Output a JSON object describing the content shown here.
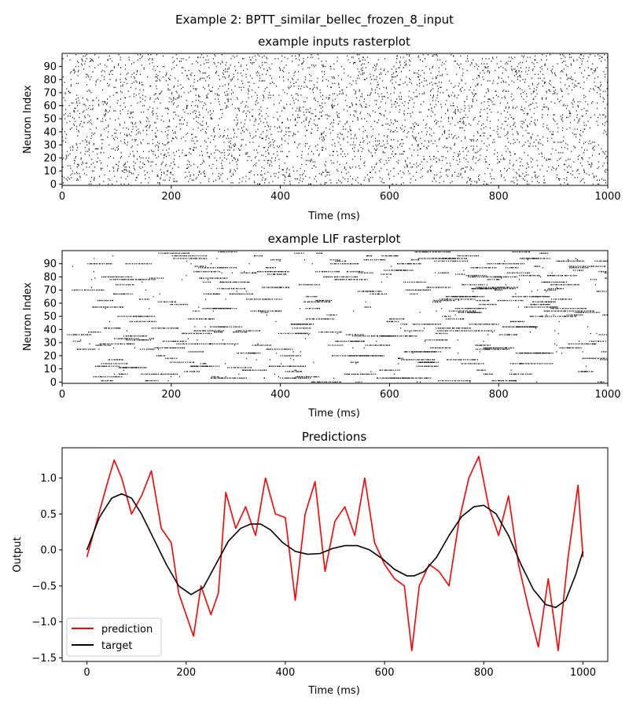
{
  "figure": {
    "suptitle": "Example 2: BPTT_similar_bellec_frozen_8_input"
  },
  "chart_data": [
    {
      "type": "scatter",
      "title": "example inputs rasterplot",
      "xlabel": "Time (ms)",
      "ylabel": "Neuron Index",
      "xlim": [
        0,
        1000
      ],
      "ylim": [
        -1,
        100
      ],
      "xticks": [
        0,
        200,
        400,
        600,
        800,
        1000
      ],
      "yticks": [
        0,
        10,
        20,
        30,
        40,
        50,
        60,
        70,
        80,
        90
      ],
      "grid": false,
      "spike_color": "#000000",
      "neurons": 100,
      "duration": 1000,
      "spikes_per_neuron": 40,
      "seed": 7
    },
    {
      "type": "scatter",
      "title": "example LIF rasterplot",
      "xlabel": "Time (ms)",
      "ylabel": "Neuron Index",
      "xlim": [
        0,
        1000
      ],
      "ylim": [
        -1,
        100
      ],
      "xticks": [
        0,
        200,
        400,
        600,
        800,
        1000
      ],
      "yticks": [
        0,
        10,
        20,
        30,
        40,
        50,
        60,
        70,
        80,
        90
      ],
      "grid": false,
      "spike_color": "#000000",
      "neurons": 100,
      "duration": 1000,
      "bursts_per_neuron": 4,
      "seed": 13
    },
    {
      "type": "line",
      "title": "Predictions",
      "xlabel": "Time (ms)",
      "ylabel": "Output",
      "xlim": [
        -50,
        1050
      ],
      "ylim": [
        -1.55,
        1.42
      ],
      "xticks": [
        0,
        200,
        400,
        600,
        800,
        1000
      ],
      "yticks": [
        -1.5,
        -1.0,
        -0.5,
        0.0,
        0.5,
        1.0
      ],
      "ytick_labels": [
        "−1.5",
        "−1.0",
        "−0.5",
        "0.0",
        "0.5",
        "1.0"
      ],
      "grid": false,
      "legend_position": "lower-left",
      "series": [
        {
          "name": "prediction",
          "color": "#ff0000",
          "x": [
            0,
            20,
            40,
            55,
            70,
            90,
            110,
            130,
            150,
            170,
            185,
            200,
            215,
            230,
            250,
            265,
            280,
            300,
            320,
            340,
            360,
            380,
            400,
            420,
            440,
            460,
            480,
            500,
            520,
            540,
            560,
            580,
            600,
            620,
            640,
            655,
            670,
            690,
            710,
            730,
            750,
            770,
            790,
            810,
            830,
            850,
            870,
            890,
            910,
            930,
            950,
            970,
            990,
            1000
          ],
          "y": [
            -0.1,
            0.4,
            0.9,
            1.25,
            1.0,
            0.5,
            0.75,
            1.1,
            0.3,
            0.1,
            -0.6,
            -0.9,
            -1.2,
            -0.5,
            -0.9,
            -0.6,
            0.8,
            0.3,
            0.6,
            0.2,
            1.0,
            0.5,
            0.45,
            -0.7,
            0.5,
            0.95,
            -0.3,
            0.4,
            0.6,
            0.2,
            1.0,
            0.1,
            -0.2,
            -0.4,
            -0.5,
            -1.4,
            -0.5,
            -0.2,
            -0.3,
            -0.5,
            0.4,
            1.0,
            1.3,
            0.6,
            0.2,
            0.75,
            -0.2,
            -0.8,
            -1.35,
            -0.4,
            -1.4,
            -0.1,
            0.9,
            -0.1
          ]
        },
        {
          "name": "target",
          "color": "#000000",
          "x": [
            0,
            25,
            50,
            70,
            90,
            110,
            135,
            160,
            185,
            210,
            235,
            260,
            285,
            310,
            330,
            350,
            370,
            395,
            420,
            445,
            470,
            495,
            520,
            545,
            570,
            595,
            620,
            645,
            660,
            680,
            705,
            730,
            755,
            780,
            800,
            825,
            850,
            875,
            900,
            925,
            945,
            965,
            985,
            1000
          ],
          "y": [
            0.0,
            0.45,
            0.72,
            0.78,
            0.72,
            0.5,
            0.15,
            -0.2,
            -0.5,
            -0.62,
            -0.52,
            -0.2,
            0.12,
            0.3,
            0.36,
            0.36,
            0.28,
            0.1,
            -0.02,
            -0.06,
            -0.05,
            0.02,
            0.06,
            0.06,
            0.0,
            -0.12,
            -0.27,
            -0.36,
            -0.36,
            -0.3,
            -0.1,
            0.2,
            0.46,
            0.6,
            0.62,
            0.5,
            0.2,
            -0.2,
            -0.55,
            -0.76,
            -0.8,
            -0.7,
            -0.35,
            -0.02
          ]
        }
      ]
    }
  ]
}
